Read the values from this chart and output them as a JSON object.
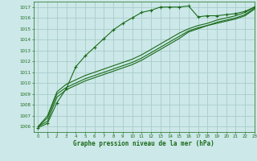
{
  "title": "Graphe pression niveau de la mer (hPa)",
  "background_color": "#cce8e8",
  "grid_color": "#aacccc",
  "line_color": "#1a6b1a",
  "xlim": [
    -0.5,
    23
  ],
  "ylim": [
    1005.5,
    1017.5
  ],
  "yticks": [
    1006,
    1007,
    1008,
    1009,
    1010,
    1011,
    1012,
    1013,
    1014,
    1015,
    1016,
    1017
  ],
  "xticks": [
    0,
    1,
    2,
    3,
    4,
    5,
    6,
    7,
    8,
    9,
    10,
    11,
    12,
    13,
    14,
    15,
    16,
    17,
    18,
    19,
    20,
    21,
    22,
    23
  ],
  "series": [
    {
      "x": [
        0,
        1,
        2,
        3,
        4,
        5,
        6,
        7,
        8,
        9,
        10,
        11,
        12,
        13,
        14,
        15,
        16,
        17,
        18,
        19,
        20,
        21,
        22,
        23
      ],
      "y": [
        1005.9,
        1006.3,
        1008.2,
        1009.5,
        1011.5,
        1012.5,
        1013.3,
        1014.1,
        1014.9,
        1015.5,
        1016.0,
        1016.5,
        1016.7,
        1017.0,
        1017.0,
        1017.0,
        1017.1,
        1016.1,
        1016.2,
        1016.2,
        1016.3,
        1016.4,
        1016.6,
        1017.0
      ],
      "marker": "+",
      "linewidth": 0.8,
      "markersize": 3.5,
      "markeredgewidth": 0.8
    },
    {
      "x": [
        0,
        1,
        2,
        3,
        4,
        5,
        6,
        7,
        8,
        9,
        10,
        11,
        12,
        13,
        14,
        15,
        16,
        17,
        18,
        19,
        20,
        21,
        22,
        23
      ],
      "y": [
        1006.0,
        1007.0,
        1009.2,
        1009.9,
        1010.3,
        1010.7,
        1011.0,
        1011.3,
        1011.6,
        1011.9,
        1012.2,
        1012.6,
        1013.1,
        1013.6,
        1014.1,
        1014.6,
        1015.0,
        1015.3,
        1015.5,
        1015.8,
        1016.0,
        1016.2,
        1016.5,
        1017.0
      ],
      "marker": null,
      "linewidth": 0.8,
      "markersize": 0
    },
    {
      "x": [
        0,
        1,
        2,
        3,
        4,
        5,
        6,
        7,
        8,
        9,
        10,
        11,
        12,
        13,
        14,
        15,
        16,
        17,
        18,
        19,
        20,
        21,
        22,
        23
      ],
      "y": [
        1006.0,
        1006.8,
        1009.0,
        1009.6,
        1010.0,
        1010.4,
        1010.7,
        1011.0,
        1011.3,
        1011.6,
        1011.9,
        1012.3,
        1012.8,
        1013.3,
        1013.8,
        1014.3,
        1014.8,
        1015.1,
        1015.3,
        1015.6,
        1015.8,
        1016.0,
        1016.3,
        1016.9
      ],
      "marker": null,
      "linewidth": 0.8,
      "markersize": 0
    },
    {
      "x": [
        0,
        1,
        2,
        3,
        4,
        5,
        6,
        7,
        8,
        9,
        10,
        11,
        12,
        13,
        14,
        15,
        16,
        17,
        18,
        19,
        20,
        21,
        22,
        23
      ],
      "y": [
        1006.0,
        1006.5,
        1008.7,
        1009.4,
        1009.8,
        1010.2,
        1010.5,
        1010.8,
        1011.1,
        1011.4,
        1011.7,
        1012.1,
        1012.6,
        1013.1,
        1013.6,
        1014.1,
        1014.7,
        1015.0,
        1015.3,
        1015.5,
        1015.7,
        1015.9,
        1016.2,
        1016.8
      ],
      "marker": null,
      "linewidth": 0.8,
      "markersize": 0
    }
  ]
}
